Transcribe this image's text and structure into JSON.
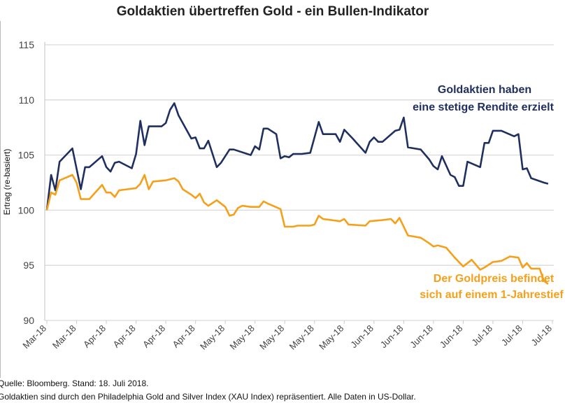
{
  "chart_data": {
    "type": "line",
    "title": "Goldaktien übertreffen Gold - ein Bullen-Indikator",
    "xlabel": "",
    "ylabel": "Ertrag (re-basiert)",
    "ylim": [
      90,
      115
    ],
    "yticks": [
      90,
      95,
      100,
      105,
      110,
      115
    ],
    "xlim": [
      "2018-03-22",
      "2018-07-19"
    ],
    "xticks": [
      "2018-03-22",
      "2018-03-29",
      "2018-04-05",
      "2018-04-12",
      "2018-04-19",
      "2018-04-26",
      "2018-05-03",
      "2018-05-10",
      "2018-05-17",
      "2018-05-24",
      "2018-05-31",
      "2018-06-07",
      "2018-06-14",
      "2018-06-21",
      "2018-06-28",
      "2018-07-05",
      "2018-07-12",
      "2018-07-19"
    ],
    "xtick_labels": [
      "Mar-18",
      "Mar-18",
      "Apr-18",
      "Apr-18",
      "Apr-18",
      "Apr-18",
      "May-18",
      "May-18",
      "May-18",
      "May-18",
      "May-18",
      "Jun-18",
      "Jun-18",
      "Jun-18",
      "Jun-18",
      "Jul-18",
      "Jul-18",
      "Jul-18"
    ],
    "grid": "horizontal",
    "series": [
      {
        "color": "#1f3060",
        "x": [
          "2018-03-22",
          "2018-03-23",
          "2018-03-24",
          "2018-03-25",
          "2018-03-28",
          "2018-03-30",
          "2018-03-31",
          "2018-04-01",
          "2018-04-04",
          "2018-04-05",
          "2018-04-06",
          "2018-04-07",
          "2018-04-08",
          "2018-04-11",
          "2018-04-12",
          "2018-04-13",
          "2018-04-14",
          "2018-04-15",
          "2018-04-18",
          "2018-04-19",
          "2018-04-20",
          "2018-04-21",
          "2018-04-22",
          "2018-04-25",
          "2018-04-26",
          "2018-04-27",
          "2018-04-28",
          "2018-04-29",
          "2018-05-01",
          "2018-05-02",
          "2018-05-04",
          "2018-05-05",
          "2018-05-09",
          "2018-05-10",
          "2018-05-11",
          "2018-05-12",
          "2018-05-13",
          "2018-05-15",
          "2018-05-16",
          "2018-05-17",
          "2018-05-18",
          "2018-05-19",
          "2018-05-21",
          "2018-05-23",
          "2018-05-25",
          "2018-05-26",
          "2018-05-29",
          "2018-05-30",
          "2018-05-31",
          "2018-06-02",
          "2018-06-05",
          "2018-06-06",
          "2018-06-07",
          "2018-06-08",
          "2018-06-09",
          "2018-06-12",
          "2018-06-13",
          "2018-06-14",
          "2018-06-15",
          "2018-06-18",
          "2018-06-20",
          "2018-06-21",
          "2018-06-22",
          "2018-06-23",
          "2018-06-25",
          "2018-06-26",
          "2018-06-27",
          "2018-06-28",
          "2018-06-29",
          "2018-07-02",
          "2018-07-03",
          "2018-07-04",
          "2018-07-05",
          "2018-07-07",
          "2018-07-10",
          "2018-07-11",
          "2018-07-12",
          "2018-07-13",
          "2018-07-14",
          "2018-07-17",
          "2018-07-18"
        ],
        "values": [
          100.0,
          103.2,
          101.8,
          104.4,
          105.6,
          101.9,
          103.9,
          103.9,
          104.9,
          103.9,
          103.5,
          104.3,
          104.4,
          103.8,
          105.1,
          108.1,
          105.9,
          107.6,
          107.6,
          107.9,
          109.1,
          109.7,
          108.6,
          106.5,
          106.6,
          105.6,
          105.6,
          106.3,
          103.9,
          104.3,
          105.5,
          105.5,
          105.0,
          105.8,
          105.5,
          107.4,
          107.4,
          106.9,
          104.7,
          104.9,
          104.8,
          105.1,
          105.1,
          105.2,
          108.0,
          106.9,
          106.9,
          106.2,
          107.3,
          106.5,
          105.2,
          106.2,
          106.6,
          106.2,
          106.2,
          107.2,
          107.3,
          108.4,
          105.7,
          105.5,
          104.6,
          104.0,
          103.7,
          104.9,
          103.2,
          103.0,
          102.2,
          102.2,
          104.4,
          103.9,
          106.1,
          106.1,
          107.2,
          107.2,
          106.7,
          106.9,
          103.7,
          103.8,
          102.9,
          102.5,
          102.4
        ]
      },
      {
        "color": "#f5a01a",
        "x": [
          "2018-03-22",
          "2018-03-23",
          "2018-03-24",
          "2018-03-25",
          "2018-03-28",
          "2018-03-29",
          "2018-03-30",
          "2018-03-31",
          "2018-04-01",
          "2018-04-04",
          "2018-04-05",
          "2018-04-06",
          "2018-04-07",
          "2018-04-08",
          "2018-04-12",
          "2018-04-13",
          "2018-04-14",
          "2018-04-15",
          "2018-04-16",
          "2018-04-19",
          "2018-04-20",
          "2018-04-21",
          "2018-04-22",
          "2018-04-23",
          "2018-04-25",
          "2018-04-26",
          "2018-04-27",
          "2018-04-28",
          "2018-04-29",
          "2018-05-01",
          "2018-05-03",
          "2018-05-04",
          "2018-05-05",
          "2018-05-06",
          "2018-05-07",
          "2018-05-09",
          "2018-05-10",
          "2018-05-11",
          "2018-05-12",
          "2018-05-13",
          "2018-05-16",
          "2018-05-17",
          "2018-05-19",
          "2018-05-20",
          "2018-05-23",
          "2018-05-24",
          "2018-05-25",
          "2018-05-26",
          "2018-05-28",
          "2018-05-30",
          "2018-05-31",
          "2018-06-01",
          "2018-06-05",
          "2018-06-06",
          "2018-06-09",
          "2018-06-11",
          "2018-06-12",
          "2018-06-13",
          "2018-06-15",
          "2018-06-18",
          "2018-06-20",
          "2018-06-21",
          "2018-06-22",
          "2018-06-24",
          "2018-06-26",
          "2018-06-28",
          "2018-06-30",
          "2018-07-02",
          "2018-07-03",
          "2018-07-05",
          "2018-07-07",
          "2018-07-09",
          "2018-07-11",
          "2018-07-12",
          "2018-07-13",
          "2018-07-14",
          "2018-07-16",
          "2018-07-17",
          "2018-07-18"
        ],
        "values": [
          100.0,
          101.6,
          101.4,
          102.7,
          103.2,
          102.5,
          101.0,
          101.0,
          101.0,
          102.3,
          101.6,
          101.6,
          101.2,
          101.8,
          102.0,
          102.4,
          103.2,
          101.9,
          102.6,
          102.7,
          102.8,
          102.9,
          102.6,
          101.9,
          101.4,
          101.1,
          101.5,
          100.7,
          100.4,
          100.9,
          100.3,
          99.5,
          99.6,
          100.2,
          100.4,
          100.3,
          100.3,
          100.3,
          100.8,
          100.6,
          100.1,
          98.5,
          98.5,
          98.6,
          98.6,
          98.7,
          99.5,
          99.2,
          99.1,
          99.0,
          99.2,
          98.7,
          98.6,
          99.0,
          99.1,
          99.2,
          98.8,
          99.3,
          97.7,
          97.5,
          97.0,
          96.7,
          96.8,
          96.6,
          95.7,
          94.9,
          95.5,
          94.6,
          94.8,
          95.3,
          95.4,
          95.8,
          95.7,
          94.8,
          95.2,
          94.7,
          94.7,
          93.6,
          93.3
        ]
      }
    ],
    "annotations": {
      "gold_stocks": [
        "Goldaktien haben",
        "eine stetige Rendite erzielt"
      ],
      "gold_price": [
        "Der Goldpreis befindet",
        "sich auf einem 1-Jahrestief"
      ]
    }
  },
  "footer": {
    "source": "Quelle: Bloomberg. Stand: 18. Juli 2018.",
    "note": "Goldaktien sind durch den Philadelphia Gold and Silver Index (XAU Index) repräsentiert. Alle Daten in US-Dollar."
  }
}
